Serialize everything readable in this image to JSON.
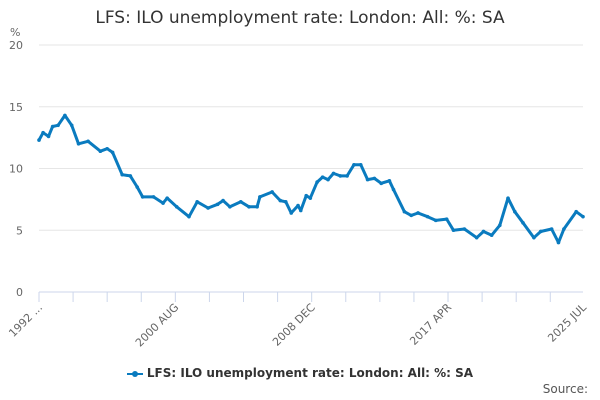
{
  "chart_data": {
    "type": "line",
    "title": "LFS: ILO unemployment rate: London: All: %: SA",
    "ylabel": "%",
    "xlabel": "",
    "ylim": [
      0,
      20
    ],
    "yticks": [
      0,
      5,
      10,
      15,
      20
    ],
    "grid": true,
    "legend_position": "bottom",
    "xtick_labels": [
      "1992 ...",
      "2000 AUG",
      "2008 DEC",
      "2017 APR",
      "2025 JUL"
    ],
    "xtick_dates": [
      "1992-04",
      "2000-08",
      "2008-12",
      "2017-04",
      "2025-07"
    ],
    "series": [
      {
        "name": "LFS: ILO unemployment rate: London: All: %: SA",
        "color": "#0a7bbf",
        "points": [
          [
            "1992-04",
            12.3
          ],
          [
            "1992-07",
            12.9
          ],
          [
            "1992-11",
            12.6
          ],
          [
            "1993-02",
            13.4
          ],
          [
            "1993-06",
            13.5
          ],
          [
            "1993-11",
            14.3
          ],
          [
            "1994-04",
            13.5
          ],
          [
            "1994-09",
            12.0
          ],
          [
            "1995-04",
            12.2
          ],
          [
            "1996-01",
            11.4
          ],
          [
            "1996-06",
            11.6
          ],
          [
            "1996-10",
            11.3
          ],
          [
            "1997-05",
            9.5
          ],
          [
            "1997-11",
            9.4
          ],
          [
            "1998-04",
            8.5
          ],
          [
            "1998-08",
            7.7
          ],
          [
            "1999-04",
            7.7
          ],
          [
            "1999-11",
            7.2
          ],
          [
            "2000-02",
            7.6
          ],
          [
            "2000-09",
            6.9
          ],
          [
            "2001-06",
            6.1
          ],
          [
            "2001-12",
            7.3
          ],
          [
            "2002-08",
            6.8
          ],
          [
            "2003-03",
            7.1
          ],
          [
            "2003-07",
            7.4
          ],
          [
            "2003-12",
            6.9
          ],
          [
            "2004-08",
            7.3
          ],
          [
            "2005-02",
            6.9
          ],
          [
            "2005-08",
            6.9
          ],
          [
            "2005-10",
            7.7
          ],
          [
            "2006-07",
            8.1
          ],
          [
            "2007-01",
            7.4
          ],
          [
            "2007-05",
            7.3
          ],
          [
            "2007-09",
            6.4
          ],
          [
            "2008-02",
            7.0
          ],
          [
            "2008-04",
            6.6
          ],
          [
            "2008-08",
            7.8
          ],
          [
            "2008-11",
            7.6
          ],
          [
            "2009-04",
            8.9
          ],
          [
            "2009-08",
            9.3
          ],
          [
            "2009-12",
            9.1
          ],
          [
            "2010-04",
            9.6
          ],
          [
            "2010-09",
            9.4
          ],
          [
            "2011-02",
            9.4
          ],
          [
            "2011-07",
            10.3
          ],
          [
            "2011-12",
            10.3
          ],
          [
            "2012-05",
            9.1
          ],
          [
            "2012-10",
            9.2
          ],
          [
            "2013-03",
            8.8
          ],
          [
            "2013-09",
            9.0
          ],
          [
            "2013-12",
            8.3
          ],
          [
            "2014-08",
            6.5
          ],
          [
            "2015-01",
            6.2
          ],
          [
            "2015-06",
            6.4
          ],
          [
            "2016-01",
            6.1
          ],
          [
            "2016-07",
            5.8
          ],
          [
            "2017-03",
            5.9
          ],
          [
            "2017-08",
            5.0
          ],
          [
            "2018-04",
            5.1
          ],
          [
            "2019-01",
            4.4
          ],
          [
            "2019-06",
            4.9
          ],
          [
            "2019-12",
            4.6
          ],
          [
            "2020-06",
            5.4
          ],
          [
            "2020-12",
            7.6
          ],
          [
            "2021-05",
            6.5
          ],
          [
            "2021-11",
            5.6
          ],
          [
            "2022-07",
            4.4
          ],
          [
            "2022-12",
            4.9
          ],
          [
            "2023-08",
            5.1
          ],
          [
            "2024-01",
            4.0
          ],
          [
            "2024-05",
            5.1
          ],
          [
            "2025-02",
            6.5
          ],
          [
            "2025-07",
            6.1
          ]
        ]
      }
    ]
  },
  "legend": {
    "label": "LFS: ILO unemployment rate: London: All: %: SA"
  },
  "source_label": "Source:"
}
